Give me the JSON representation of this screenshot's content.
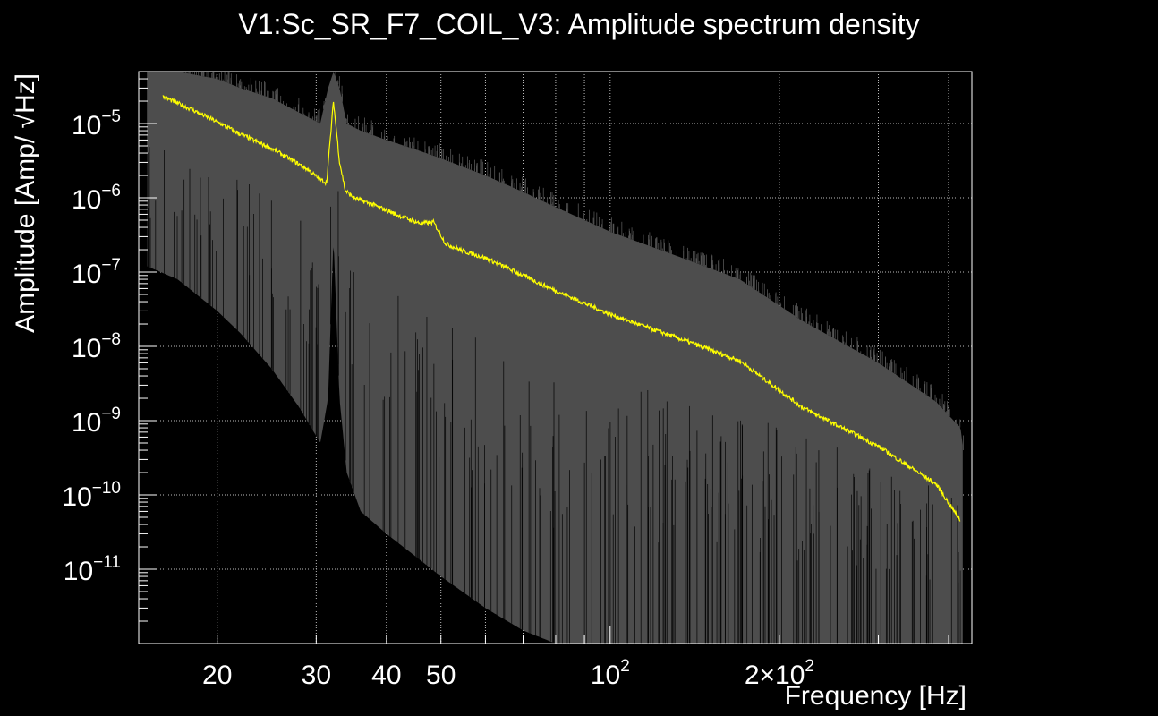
{
  "chart_data": {
    "type": "line",
    "title": "V1:Sc_SR_F7_COIL_V3: Amplitude spectrum density",
    "xlabel": "Frequency [Hz]",
    "ylabel": "Amplitude [Amp/ √Hz]",
    "xscale": "log",
    "yscale": "log",
    "xlim": [
      14.5,
      440
    ],
    "ylim": [
      1e-12,
      5e-05
    ],
    "grid": true,
    "x_ticks": [
      {
        "value": 20,
        "label": "20"
      },
      {
        "value": 30,
        "label": "30"
      },
      {
        "value": 40,
        "label": "40"
      },
      {
        "value": 50,
        "label": "50"
      },
      {
        "value": 100,
        "base": "10",
        "exp": "2"
      },
      {
        "value": 200,
        "base": "2×10",
        "exp": "2"
      }
    ],
    "y_ticks": [
      {
        "value": 1e-05,
        "base": "10",
        "exp": "−5"
      },
      {
        "value": 1e-06,
        "base": "10",
        "exp": "−6"
      },
      {
        "value": 1e-07,
        "base": "10",
        "exp": "−7"
      },
      {
        "value": 1e-08,
        "base": "10",
        "exp": "−8"
      },
      {
        "value": 1e-09,
        "base": "10",
        "exp": "−9"
      },
      {
        "value": 1e-10,
        "base": "10",
        "exp": "−10"
      },
      {
        "value": 1e-11,
        "base": "10",
        "exp": "−11"
      }
    ],
    "series": [
      {
        "color": "#ffff00",
        "x": [
          16,
          18,
          20,
          22,
          25,
          27,
          29,
          30.5,
          31.3,
          32.2,
          33,
          33.8,
          35,
          38,
          42,
          46,
          48.5,
          49.5,
          51,
          55,
          60,
          70,
          80,
          100,
          130,
          170,
          220,
          300,
          380,
          420
        ],
        "y": [
          2.3e-05,
          1.55e-05,
          1.05e-05,
          7.2e-06,
          4.6e-06,
          3.3e-06,
          2.4e-06,
          1.75e-06,
          1.6e-06,
          2e-05,
          3.1e-06,
          1.25e-06,
          1e-06,
          8e-07,
          5.8e-07,
          4.5e-07,
          4.7e-07,
          3.6e-07,
          2.4e-07,
          1.9e-07,
          1.55e-07,
          9e-08,
          5.6e-08,
          2.7e-08,
          1.35e-08,
          6.4e-09,
          1.5e-09,
          4.5e-10,
          1.4e-10,
          4.5e-11
        ]
      },
      {
        "color": "#4d4d4d",
        "fill": true,
        "x": [
          15,
          17,
          20,
          22,
          25,
          28,
          30.5,
          31.5,
          32.2,
          33,
          34,
          36,
          40,
          45,
          50,
          60,
          70,
          80,
          100,
          130,
          170,
          220,
          300,
          380,
          420,
          425
        ],
        "y": [
          5e-05,
          5e-05,
          4e-05,
          3e-05,
          2.2e-05,
          1.4e-05,
          1e-05,
          3e-05,
          5e-05,
          3e-05,
          1e-05,
          8e-06,
          6e-06,
          4.5e-06,
          3.4e-06,
          2e-06,
          1.2e-06,
          7.5e-07,
          3.5e-07,
          1.7e-07,
          8e-08,
          2.2e-08,
          6e-09,
          1.8e-09,
          8e-10,
          4e-10
        ],
        "y_low": [
          1.2e-07,
          8e-08,
          3e-08,
          1.5e-08,
          5e-09,
          1.5e-09,
          5e-10,
          2e-09,
          3e-07,
          2e-09,
          2e-10,
          6e-11,
          3e-11,
          1.5e-11,
          8e-12,
          3e-12,
          1.5e-12,
          1e-12,
          1e-12,
          1e-12,
          1e-12,
          1e-12,
          1e-12,
          1e-12,
          1e-12,
          1e-12
        ]
      }
    ]
  }
}
